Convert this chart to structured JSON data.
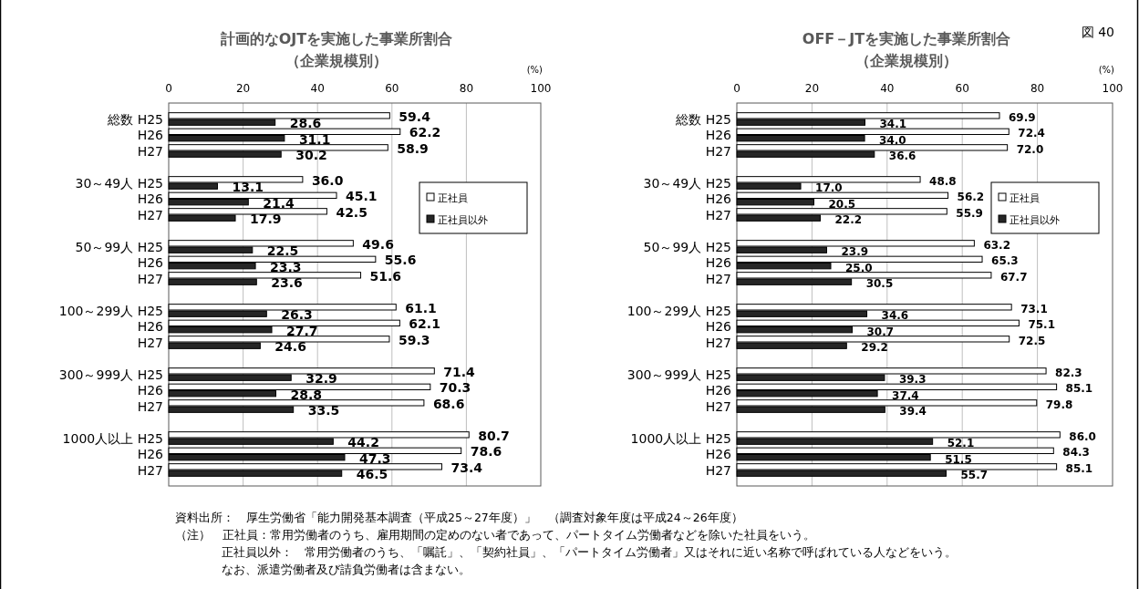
{
  "chart_data": [
    {
      "type": "bar",
      "orientation": "horizontal",
      "title": "計画的なOJTを実施した事業所割合",
      "subtitle": "（企業規模別）",
      "xlabel": "(%)",
      "categories": [
        "総数 H25",
        "H26",
        "H27",
        "30～49人 H25",
        "H26",
        "H27",
        "50～99人 H25",
        "H26",
        "H27",
        "100～299人 H25",
        "H26",
        "H27",
        "300～999人 H25",
        "H26",
        "H27",
        "1000人以上 H25",
        "H26",
        "H27"
      ],
      "series": [
        {
          "name": "正社員",
          "color": "#ffffff",
          "values": [
            59.4,
            62.2,
            58.9,
            36.0,
            45.1,
            42.5,
            49.6,
            55.6,
            51.6,
            61.1,
            62.1,
            59.3,
            71.4,
            70.3,
            68.6,
            80.7,
            78.6,
            73.4
          ],
          "value_labels": [
            "59.4",
            "62.2",
            "58.9",
            "36.0",
            "45.1",
            "42.5",
            "49.6",
            "55.6",
            "51.6",
            "61.1",
            "62.1",
            "59.3",
            "71.4",
            "70.3",
            "68.6",
            "80.7",
            "78.6",
            "73.4"
          ]
        },
        {
          "name": "正社員以外",
          "color": "#262626",
          "values": [
            28.6,
            31.1,
            30.2,
            13.1,
            21.4,
            17.9,
            22.5,
            23.3,
            23.6,
            26.3,
            27.7,
            24.6,
            32.9,
            28.8,
            33.5,
            44.2,
            47.3,
            46.5
          ],
          "value_labels": [
            "28.6",
            "31.1",
            "30.2",
            "13.1",
            "21.4",
            "17.9",
            "22.5",
            "23.3",
            "23.6",
            "26.3",
            "27.7",
            "24.6",
            "32.9",
            "28.8",
            "33.5",
            "44.2",
            "47.3",
            "46.5"
          ]
        }
      ],
      "xlim": [
        0,
        100
      ],
      "xticks": [
        0,
        20,
        40,
        60,
        80,
        100
      ],
      "grid": "x",
      "legend": "right",
      "annotations": [
        "資料出所：　厚生労働省「能力開発基本調査（平成25～27年度）」　（調査対象年度は平成24～26年度）",
        "（注）　正社員：常用労働者のうち、雇用期間の定めのない者であって、パートタイム労働者などを除いた社員をいう。",
        "正社員以外：　常用労働者のうち、「嘱託」、「契約社員」、「パートタイム労働者」又はそれに近い名称で呼ばれている人などをいう。",
        "なお、派遣労働者及び請負労働者は含まない。"
      ]
    },
    {
      "type": "bar",
      "orientation": "horizontal",
      "title": "OFF－JTを実施した事業所割合",
      "subtitle": "（企業規模別）",
      "xlabel": "(%)",
      "categories": [
        "総数 H25",
        "H26",
        "H27",
        "30～49人 H25",
        "H26",
        "H27",
        "50～99人 H25",
        "H26",
        "H27",
        "100～299人 H25",
        "H26",
        "H27",
        "300～999人 H25",
        "H26",
        "H27",
        "1000人以上 H25",
        "H26",
        "H27"
      ],
      "series": [
        {
          "name": "正社員",
          "color": "#ffffff",
          "values": [
            69.9,
            72.4,
            72.0,
            48.8,
            56.2,
            55.9,
            63.2,
            65.3,
            67.7,
            73.1,
            75.1,
            72.5,
            82.3,
            85.1,
            79.8,
            86.0,
            84.3,
            85.1
          ],
          "value_labels": [
            "69.9",
            "72.4",
            "72.0",
            "48.8",
            "56.2",
            "55.9",
            "63.2",
            "65.3",
            "67.7",
            "73.1",
            "75.1",
            "72.5",
            "82.3",
            "85.1",
            "79.8",
            "86.0",
            "84.3",
            "85.1"
          ]
        },
        {
          "name": "正社員以外",
          "color": "#262626",
          "values": [
            34.1,
            34.0,
            36.6,
            17.0,
            20.5,
            22.2,
            23.9,
            25.0,
            30.5,
            34.6,
            30.7,
            29.2,
            39.3,
            37.4,
            39.4,
            52.1,
            51.5,
            55.7
          ],
          "value_labels": [
            "34.1",
            "34.0",
            "36.6",
            "17.0",
            "20.5",
            "22.2",
            "23.9",
            "25.0",
            "30.5",
            "34.6",
            "30.7",
            "29.2",
            "39.3",
            "37.4",
            "39.4",
            "52.1",
            "51.5",
            "55.7"
          ]
        }
      ],
      "xlim": [
        0,
        100
      ],
      "xticks": [
        0,
        20,
        40,
        60,
        80,
        100
      ],
      "grid": "x",
      "legend": "right",
      "annotations": [
        "図 40"
      ]
    }
  ]
}
